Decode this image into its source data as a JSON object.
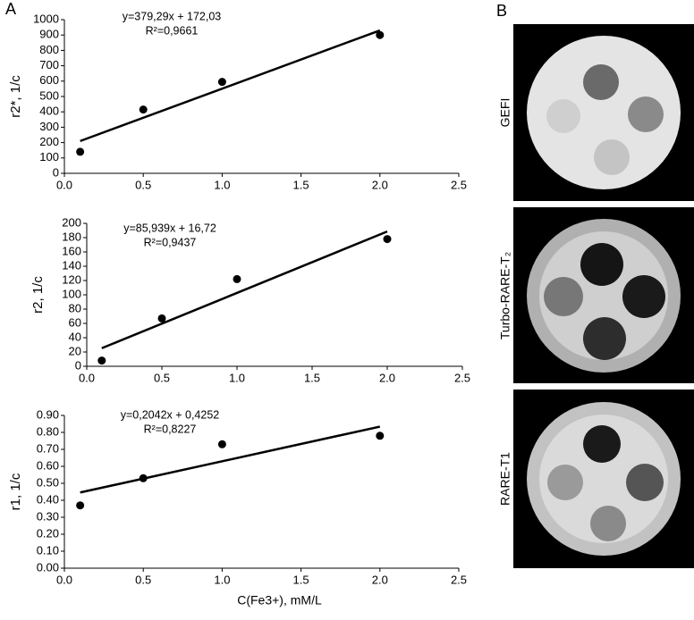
{
  "panel_labels": [
    "A",
    "B"
  ],
  "images": [
    "GEFI",
    "Turbo-RARE-T₂",
    "RARE-T1"
  ],
  "chart_data": [
    {
      "type": "scatter",
      "ylabel": "r2*, 1/c",
      "annotations": [
        "y=379,29x + 172,03",
        "R²=0,9661"
      ],
      "x": [
        0.1,
        0.5,
        1.0,
        2.0
      ],
      "values": [
        140,
        415,
        595,
        900
      ],
      "trend": {
        "x": [
          0.1,
          2.0
        ],
        "y": [
          210,
          930
        ]
      },
      "xlim": [
        0,
        2.5
      ],
      "ylim": [
        0,
        1000
      ],
      "xticks": [
        {
          "value": 0,
          "label": "0.0"
        },
        {
          "value": 0.5,
          "label": "0.5"
        },
        {
          "value": 1,
          "label": "1.0"
        },
        {
          "value": 1.5,
          "label": "1.5"
        },
        {
          "value": 2,
          "label": "2.0"
        },
        {
          "value": 2.5,
          "label": "2.5"
        }
      ],
      "yticks": [
        0,
        100,
        200,
        300,
        400,
        500,
        600,
        700,
        800,
        900,
        1000
      ],
      "color": "#000000"
    },
    {
      "type": "scatter",
      "ylabel": "r2, 1/c",
      "annotations": [
        "y=85,939x + 16,72",
        "R²=0,9437"
      ],
      "x": [
        0.1,
        0.5,
        1.0,
        2.0
      ],
      "values": [
        8,
        67,
        122,
        178
      ],
      "trend": {
        "x": [
          0.1,
          2.0
        ],
        "y": [
          25.3,
          188.6
        ]
      },
      "xlim": [
        0,
        2.5
      ],
      "ylim": [
        0,
        200
      ],
      "xticks": [
        {
          "value": 0,
          "label": "0.0"
        },
        {
          "value": 0.5,
          "label": "0.5"
        },
        {
          "value": 1,
          "label": "1.0"
        },
        {
          "value": 1.5,
          "label": "1.5"
        },
        {
          "value": 2,
          "label": "2.0"
        },
        {
          "value": 2.5,
          "label": "2.5"
        }
      ],
      "yticks": [
        0,
        20,
        40,
        60,
        80,
        100,
        120,
        140,
        160,
        180,
        200
      ],
      "color": "#000000"
    },
    {
      "type": "scatter",
      "ylabel": "r1, 1/c",
      "xlabel": "C(Fe3+), mM/L",
      "annotations": [
        "y=0,2042x + 0,4252",
        "R²=0,8227"
      ],
      "x": [
        0.1,
        0.5,
        1.0,
        2.0
      ],
      "values": [
        0.37,
        0.53,
        0.73,
        0.78
      ],
      "trend": {
        "x": [
          0.1,
          2.0
        ],
        "y": [
          0.446,
          0.834
        ]
      },
      "xlim": [
        0,
        2.5
      ],
      "ylim": [
        0,
        0.9
      ],
      "xticks": [
        {
          "value": 0,
          "label": "0.0"
        },
        {
          "value": 0.5,
          "label": "0.5"
        },
        {
          "value": 1,
          "label": "1.0"
        },
        {
          "value": 1.5,
          "label": "1.5"
        },
        {
          "value": 2,
          "label": "2.0"
        },
        {
          "value": 2.5,
          "label": "2.5"
        }
      ],
      "yticks": [
        {
          "value": 0,
          "label": "0.00"
        },
        {
          "value": 0.1,
          "label": "0.10"
        },
        {
          "value": 0.2,
          "label": "0.20"
        },
        {
          "value": 0.3,
          "label": "0.30"
        },
        {
          "value": 0.4,
          "label": "0.40"
        },
        {
          "value": 0.5,
          "label": "0.50"
        },
        {
          "value": 0.6,
          "label": "0.60"
        },
        {
          "value": 0.7,
          "label": "0.70"
        },
        {
          "value": 0.8,
          "label": "0.80"
        },
        {
          "value": 0.9,
          "label": "0.90"
        }
      ],
      "color": "#000000"
    }
  ]
}
